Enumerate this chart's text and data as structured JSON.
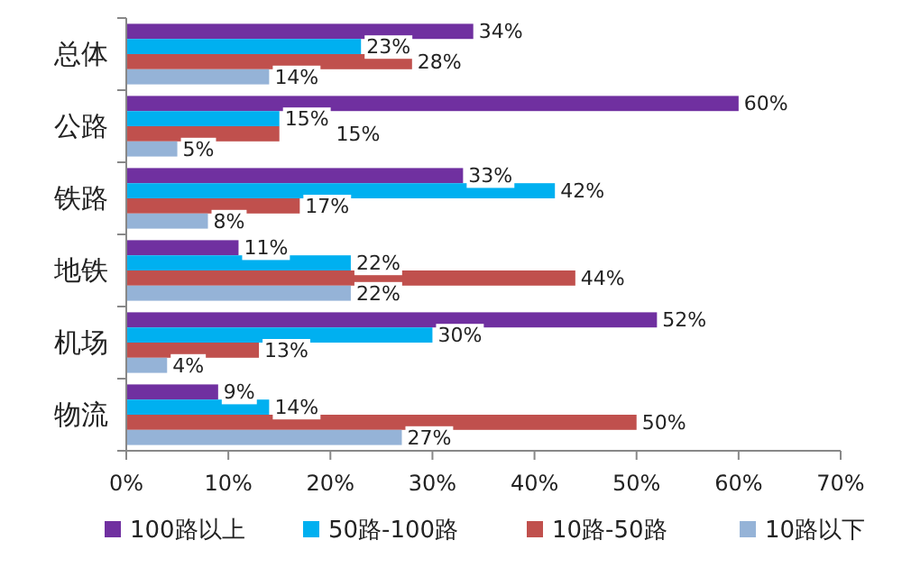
{
  "chart_data": {
    "type": "bar",
    "orientation": "horizontal",
    "categories": [
      "总体",
      "公路",
      "铁路",
      "地铁",
      "机场",
      "物流"
    ],
    "series": [
      {
        "name": "100路以上",
        "color": "#7030a0",
        "values": [
          34,
          60,
          33,
          11,
          52,
          9
        ],
        "value_labels": [
          "34%",
          "60%",
          "33%",
          "11%",
          "52%",
          "9%"
        ]
      },
      {
        "name": "50路-100路",
        "color": "#00b0f0",
        "values": [
          23,
          15,
          42,
          22,
          30,
          14
        ],
        "value_labels": [
          "23%",
          "15%",
          "42%",
          "22%",
          "30%",
          "14%"
        ]
      },
      {
        "name": "10路-50路",
        "color": "#c0504d",
        "values": [
          28,
          15,
          17,
          44,
          13,
          50
        ],
        "value_labels": [
          "28%",
          "15%",
          "17%",
          "44%",
          "13%",
          "50%"
        ]
      },
      {
        "name": "10路以下",
        "color": "#95b3d7",
        "values": [
          14,
          5,
          8,
          22,
          4,
          27
        ],
        "value_labels": [
          "14%",
          "5%",
          "8%",
          "22%",
          "4%",
          "27%"
        ]
      }
    ],
    "xlim": [
      0,
      70
    ],
    "xticks": [
      {
        "value": 0,
        "label": "0%"
      },
      {
        "value": 10,
        "label": "10%"
      },
      {
        "value": 20,
        "label": "20%"
      },
      {
        "value": 30,
        "label": "30%"
      },
      {
        "value": 40,
        "label": "40%"
      },
      {
        "value": 50,
        "label": "50%"
      },
      {
        "value": 60,
        "label": "60%"
      },
      {
        "value": 70,
        "label": "70%"
      }
    ],
    "legend": "bottom"
  }
}
